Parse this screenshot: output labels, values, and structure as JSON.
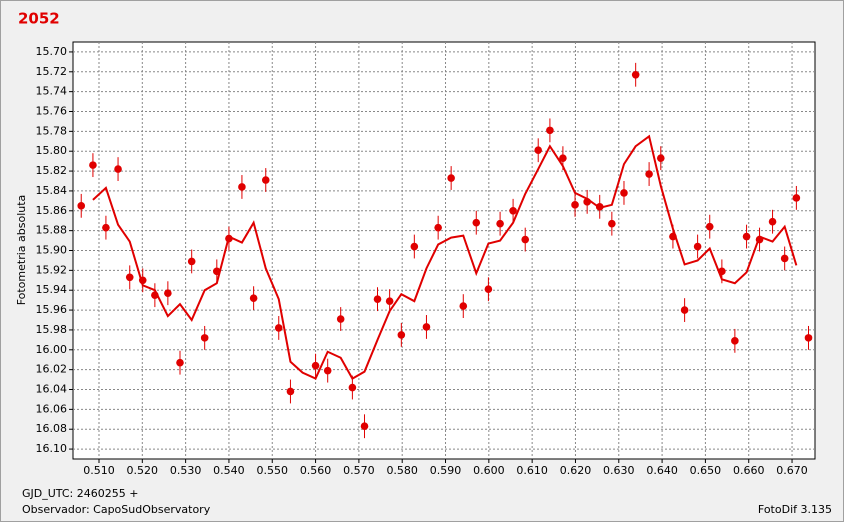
{
  "chart_data": {
    "type": "scatter",
    "title": "2052",
    "ylabel": "Fotometria absoluta",
    "xlabel": "GJD_UTC: 2460255 +",
    "observer": "Observador: CapoSudObservatory",
    "software": "FotoDif 3.135",
    "color": "#e00000",
    "grid": true,
    "y_inverted": true,
    "xlim": [
      0.504,
      0.6753
    ],
    "ylim": [
      15.69,
      16.11
    ],
    "xticks": [
      {
        "value": 0.51,
        "label": "0.510"
      },
      {
        "value": 0.52,
        "label": "0.520"
      },
      {
        "value": 0.53,
        "label": "0.530"
      },
      {
        "value": 0.54,
        "label": "0.540"
      },
      {
        "value": 0.55,
        "label": "0.550"
      },
      {
        "value": 0.56,
        "label": "0.560"
      },
      {
        "value": 0.57,
        "label": "0.570"
      },
      {
        "value": 0.58,
        "label": "0.580"
      },
      {
        "value": 0.59,
        "label": "0.590"
      },
      {
        "value": 0.6,
        "label": "0.600"
      },
      {
        "value": 0.61,
        "label": "0.610"
      },
      {
        "value": 0.62,
        "label": "0.620"
      },
      {
        "value": 0.63,
        "label": "0.630"
      },
      {
        "value": 0.64,
        "label": "0.640"
      },
      {
        "value": 0.65,
        "label": "0.650"
      },
      {
        "value": 0.66,
        "label": "0.660"
      },
      {
        "value": 0.67,
        "label": "0.670"
      }
    ],
    "yticks": [
      {
        "value": 15.7,
        "label": "15.70"
      },
      {
        "value": 15.72,
        "label": "15.72"
      },
      {
        "value": 15.74,
        "label": "15.74"
      },
      {
        "value": 15.76,
        "label": "15.76"
      },
      {
        "value": 15.78,
        "label": "15.78"
      },
      {
        "value": 15.8,
        "label": "15.80"
      },
      {
        "value": 15.82,
        "label": "15.82"
      },
      {
        "value": 15.84,
        "label": "15.84"
      },
      {
        "value": 15.86,
        "label": "15.86"
      },
      {
        "value": 15.88,
        "label": "15.88"
      },
      {
        "value": 15.9,
        "label": "15.90"
      },
      {
        "value": 15.92,
        "label": "15.92"
      },
      {
        "value": 15.94,
        "label": "15.94"
      },
      {
        "value": 15.96,
        "label": "15.96"
      },
      {
        "value": 15.98,
        "label": "15.98"
      },
      {
        "value": 16.0,
        "label": "16.00"
      },
      {
        "value": 16.02,
        "label": "16.02"
      },
      {
        "value": 16.04,
        "label": "16.04"
      },
      {
        "value": 16.06,
        "label": "16.06"
      },
      {
        "value": 16.08,
        "label": "16.08"
      },
      {
        "value": 16.1,
        "label": "16.10"
      }
    ],
    "error": 0.012,
    "x": [
      0.5059,
      0.5086,
      0.5116,
      0.5144,
      0.5171,
      0.5201,
      0.5229,
      0.5259,
      0.5287,
      0.5314,
      0.5344,
      0.5372,
      0.54,
      0.543,
      0.5457,
      0.5485,
      0.5515,
      0.5542,
      0.56,
      0.5628,
      0.5658,
      0.5685,
      0.5713,
      0.5743,
      0.5771,
      0.5798,
      0.5828,
      0.5856,
      0.5883,
      0.5913,
      0.5941,
      0.5971,
      0.5999,
      0.6026,
      0.6056,
      0.6084,
      0.6114,
      0.6141,
      0.6171,
      0.6199,
      0.6227,
      0.6256,
      0.6284,
      0.6312,
      0.6339,
      0.637,
      0.6397,
      0.6425,
      0.6452,
      0.6482,
      0.651,
      0.6538,
      0.6568,
      0.6595,
      0.6625,
      0.6655,
      0.6683,
      0.671,
      0.6738
    ],
    "values": [
      15.855,
      15.814,
      15.877,
      15.818,
      15.927,
      15.93,
      15.945,
      15.943,
      16.013,
      15.911,
      15.988,
      15.921,
      15.888,
      15.836,
      15.948,
      15.829,
      15.978,
      16.042,
      16.016,
      16.021,
      15.969,
      16.038,
      16.077,
      15.949,
      15.951,
      15.985,
      15.896,
      15.977,
      15.877,
      15.827,
      15.956,
      15.872,
      15.939,
      15.873,
      15.86,
      15.889,
      15.799,
      15.779,
      15.807,
      15.854,
      15.851,
      15.856,
      15.873,
      15.842,
      15.723,
      15.823,
      15.807,
      15.886,
      15.96,
      15.896,
      15.876,
      15.921,
      15.991,
      15.886,
      15.889,
      15.871,
      15.908,
      15.847,
      15.988
    ],
    "line": {
      "type": "line",
      "x": [
        0.5086,
        0.5116,
        0.5144,
        0.5171,
        0.5201,
        0.5229,
        0.5259,
        0.5287,
        0.5314,
        0.5344,
        0.5372,
        0.54,
        0.543,
        0.5457,
        0.5485,
        0.5515,
        0.5542,
        0.557,
        0.56,
        0.5628,
        0.5658,
        0.5685,
        0.5713,
        0.5743,
        0.5771,
        0.5798,
        0.5828,
        0.5856,
        0.5883,
        0.5913,
        0.5941,
        0.5971,
        0.5999,
        0.6026,
        0.6056,
        0.6084,
        0.6114,
        0.6141,
        0.6171,
        0.6199,
        0.6227,
        0.6256,
        0.6284,
        0.6312,
        0.6339,
        0.637,
        0.6397,
        0.6425,
        0.6452,
        0.6482,
        0.651,
        0.6538,
        0.6568,
        0.6595,
        0.6625,
        0.6655,
        0.6683,
        0.671
      ],
      "values": [
        15.849,
        15.837,
        15.874,
        15.891,
        15.935,
        15.94,
        15.966,
        15.954,
        15.97,
        15.94,
        15.933,
        15.886,
        15.892,
        15.872,
        15.918,
        15.949,
        16.012,
        16.023,
        16.029,
        16.002,
        16.008,
        16.029,
        16.022,
        15.99,
        15.961,
        15.944,
        15.951,
        15.918,
        15.894,
        15.887,
        15.885,
        15.923,
        15.893,
        15.89,
        15.872,
        15.843,
        15.818,
        15.795,
        15.815,
        15.842,
        15.848,
        15.857,
        15.854,
        15.813,
        15.795,
        15.785,
        15.835,
        15.878,
        15.914,
        15.91,
        15.898,
        15.929,
        15.933,
        15.922,
        15.886,
        15.891,
        15.876,
        15.915
      ]
    }
  }
}
